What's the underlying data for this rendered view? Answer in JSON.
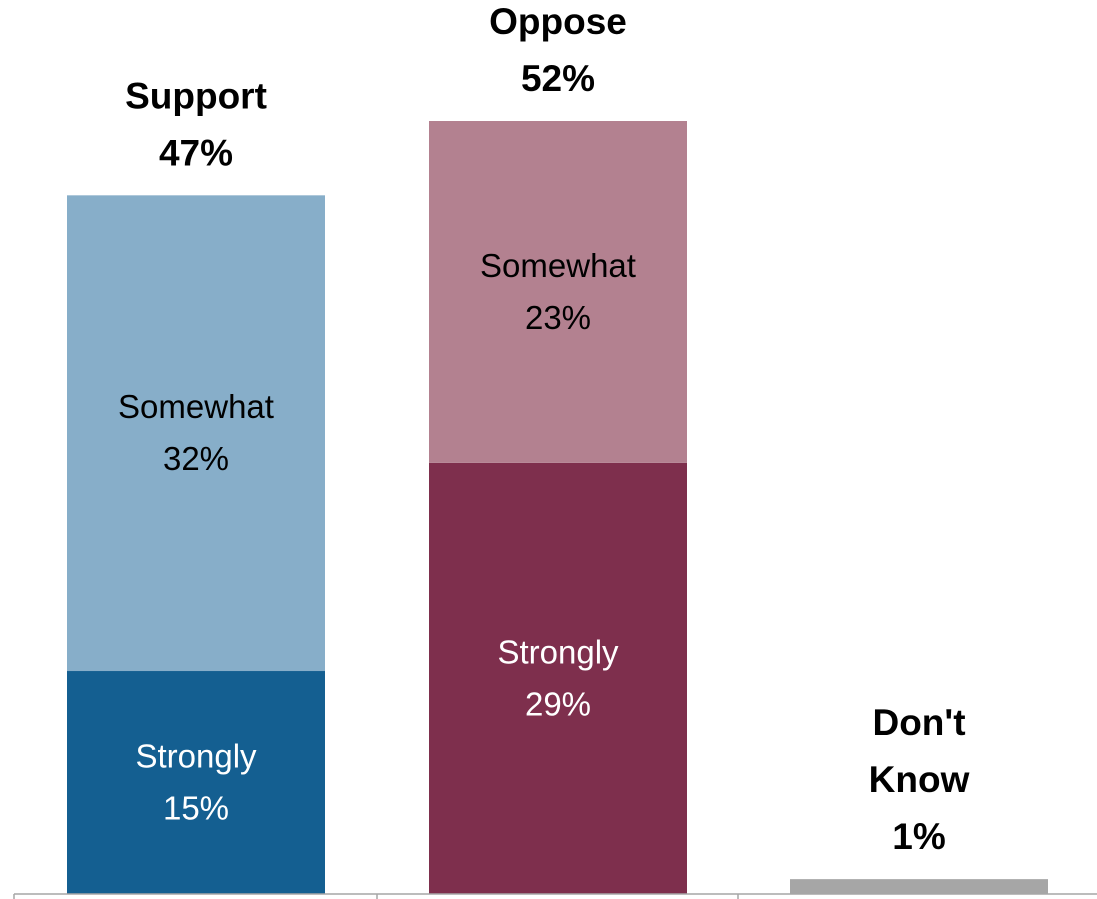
{
  "chart_data": {
    "type": "bar",
    "stacked": true,
    "categories": [
      "Support",
      "Oppose",
      "Don't Know"
    ],
    "series": [
      {
        "values": [
          15,
          29,
          1
        ],
        "colors": [
          "#145f91",
          "#7e2f4d",
          "#a6a6a6"
        ]
      },
      {
        "values": [
          32,
          23,
          0
        ],
        "colors": [
          "#87aec9",
          "#b38190",
          "#a6a6a6"
        ]
      }
    ],
    "bars": [
      {
        "category": "Support",
        "total": 47,
        "total_label": [
          "Support",
          "47%"
        ],
        "segments": [
          {
            "value": 15,
            "label": [
              "Strongly",
              "15%"
            ],
            "color": "#145f91",
            "text_color": "#ffffff"
          },
          {
            "value": 32,
            "label": [
              "Somewhat",
              "32%"
            ],
            "color": "#87aec9",
            "text_color": "#000000"
          }
        ]
      },
      {
        "category": "Oppose",
        "total": 52,
        "total_label": [
          "Oppose",
          "52%"
        ],
        "segments": [
          {
            "value": 29,
            "label": [
              "Strongly",
              "29%"
            ],
            "color": "#7e2f4d",
            "text_color": "#ffffff"
          },
          {
            "value": 23,
            "label": [
              "Somewhat",
              "23%"
            ],
            "color": "#b38190",
            "text_color": "#000000"
          }
        ]
      },
      {
        "category": "Don't Know",
        "total": 1,
        "total_label": [
          "Don't",
          "Know",
          "1%"
        ],
        "segments": [
          {
            "value": 1,
            "label": [],
            "color": "#a6a6a6",
            "text_color": "#000000"
          }
        ]
      }
    ],
    "ylim": [
      0,
      52
    ],
    "grid": false,
    "legend": "none"
  }
}
